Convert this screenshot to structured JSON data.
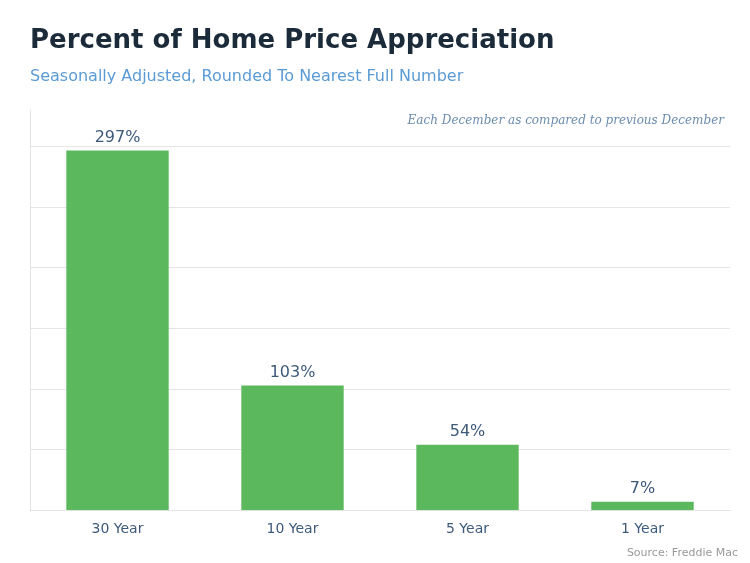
{
  "chart_data": {
    "type": "bar",
    "title": "Percent of Home Price Appreciation",
    "subtitle": "Seasonally Adjusted, Rounded To Nearest Full Number",
    "annotations": [
      "Each December as compared to previous December",
      "Source: Freddie Mac"
    ],
    "categories": [
      "30 Year",
      "10 Year",
      "5 Year",
      "1 Year"
    ],
    "values": [
      297,
      103,
      54,
      7
    ],
    "value_labels": [
      "297%",
      "103%",
      "54%",
      "7%"
    ],
    "data_labels": true,
    "color": "#5cb85c",
    "ylim": [
      0,
      330
    ],
    "yticks": [
      50,
      100,
      150,
      200,
      250,
      300
    ],
    "grid": true,
    "tick_labels": "x"
  }
}
